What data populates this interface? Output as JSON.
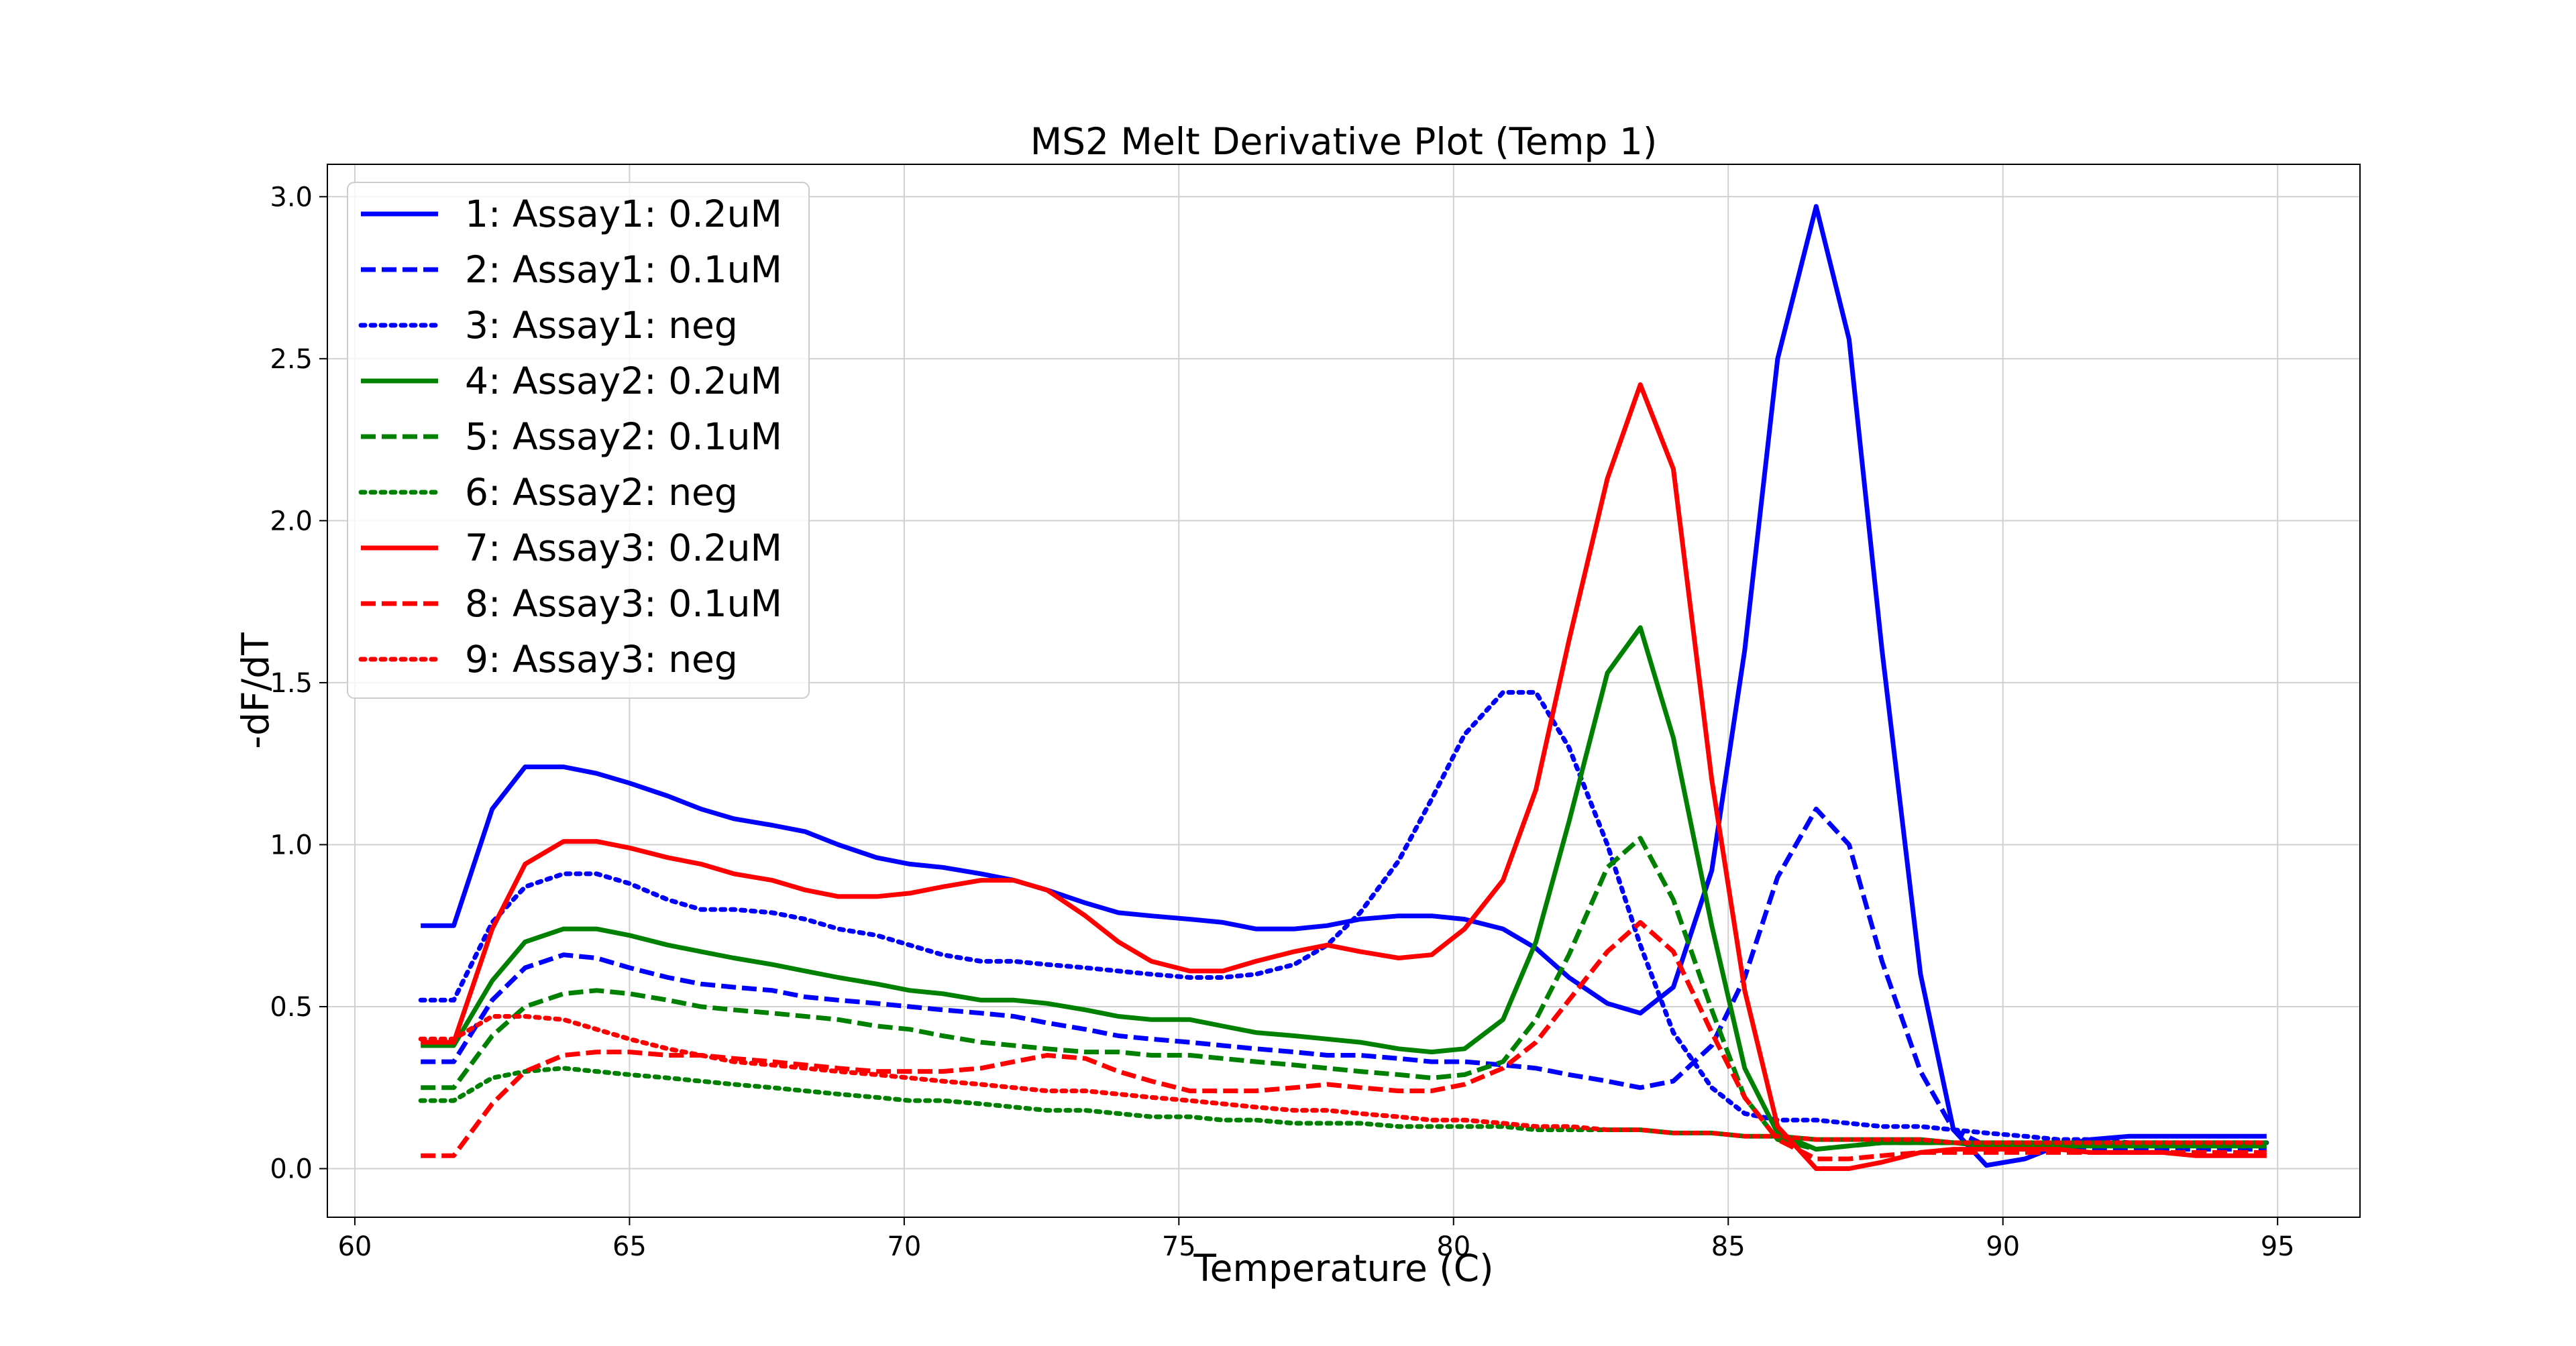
{
  "chart_data": {
    "type": "line",
    "title": "MS2 Melt Derivative Plot (Temp 1)",
    "xlabel": "Temperature (C)",
    "ylabel": "-dF/dT",
    "xlim": [
      59.5,
      96.5
    ],
    "ylim": [
      -0.15,
      3.1
    ],
    "xticks": [
      60,
      65,
      70,
      75,
      80,
      85,
      90,
      95
    ],
    "yticks": [
      0.0,
      0.5,
      1.0,
      1.5,
      2.0,
      2.5,
      3.0
    ],
    "xtick_labels": [
      "60",
      "65",
      "70",
      "75",
      "80",
      "85",
      "90",
      "95"
    ],
    "ytick_labels": [
      "0.0",
      "0.5",
      "1.0",
      "1.5",
      "2.0",
      "2.5",
      "3.0"
    ],
    "grid": true,
    "legend_position": "upper-left",
    "x": [
      61.2,
      61.8,
      62.5,
      63.1,
      63.8,
      64.4,
      65.0,
      65.7,
      66.3,
      66.9,
      67.6,
      68.2,
      68.8,
      69.5,
      70.1,
      70.7,
      71.4,
      72.0,
      72.6,
      73.3,
      73.9,
      74.5,
      75.2,
      75.8,
      76.4,
      77.1,
      77.7,
      78.3,
      79.0,
      79.6,
      80.2,
      80.9,
      81.5,
      82.1,
      82.8,
      83.4,
      84.0,
      84.7,
      85.3,
      85.9,
      86.6,
      87.2,
      87.8,
      88.5,
      89.1,
      89.7,
      90.4,
      91.0,
      91.6,
      92.3,
      92.9,
      93.5,
      94.2,
      94.8
    ],
    "series": [
      {
        "name": "1: Assay1: 0.2uM",
        "color": "#0000ff",
        "dash": "solid",
        "values": [
          0.75,
          0.75,
          1.11,
          1.24,
          1.24,
          1.22,
          1.19,
          1.15,
          1.11,
          1.08,
          1.06,
          1.04,
          1.0,
          0.96,
          0.94,
          0.93,
          0.91,
          0.89,
          0.86,
          0.82,
          0.79,
          0.78,
          0.77,
          0.76,
          0.74,
          0.74,
          0.75,
          0.77,
          0.78,
          0.78,
          0.77,
          0.74,
          0.68,
          0.59,
          0.51,
          0.48,
          0.56,
          0.92,
          1.6,
          2.5,
          2.97,
          2.56,
          1.6,
          0.6,
          0.12,
          0.01,
          0.03,
          0.07,
          0.09,
          0.1,
          0.1,
          0.1,
          0.1,
          0.1
        ]
      },
      {
        "name": "2: Assay1: 0.1uM",
        "color": "#0000ff",
        "dash": "dashed",
        "values": [
          0.33,
          0.33,
          0.52,
          0.62,
          0.66,
          0.65,
          0.62,
          0.59,
          0.57,
          0.56,
          0.55,
          0.53,
          0.52,
          0.51,
          0.5,
          0.49,
          0.48,
          0.47,
          0.45,
          0.43,
          0.41,
          0.4,
          0.39,
          0.38,
          0.37,
          0.36,
          0.35,
          0.35,
          0.34,
          0.33,
          0.33,
          0.32,
          0.31,
          0.29,
          0.27,
          0.25,
          0.27,
          0.38,
          0.59,
          0.9,
          1.11,
          1.0,
          0.64,
          0.3,
          0.12,
          0.07,
          0.06,
          0.06,
          0.06,
          0.06,
          0.06,
          0.06,
          0.06,
          0.06
        ]
      },
      {
        "name": "3: Assay1: neg",
        "color": "#0000ff",
        "dash": "dotted",
        "values": [
          0.52,
          0.52,
          0.76,
          0.87,
          0.91,
          0.91,
          0.88,
          0.83,
          0.8,
          0.8,
          0.79,
          0.77,
          0.74,
          0.72,
          0.69,
          0.66,
          0.64,
          0.64,
          0.63,
          0.62,
          0.61,
          0.6,
          0.59,
          0.59,
          0.6,
          0.63,
          0.69,
          0.79,
          0.95,
          1.14,
          1.34,
          1.47,
          1.47,
          1.3,
          1.0,
          0.69,
          0.42,
          0.25,
          0.17,
          0.15,
          0.15,
          0.14,
          0.13,
          0.13,
          0.12,
          0.11,
          0.1,
          0.09,
          0.09,
          0.08,
          0.08,
          0.08,
          0.08,
          0.08
        ]
      },
      {
        "name": "4: Assay2: 0.2uM",
        "color": "#008000",
        "dash": "solid",
        "values": [
          0.38,
          0.38,
          0.58,
          0.7,
          0.74,
          0.74,
          0.72,
          0.69,
          0.67,
          0.65,
          0.63,
          0.61,
          0.59,
          0.57,
          0.55,
          0.54,
          0.52,
          0.52,
          0.51,
          0.49,
          0.47,
          0.46,
          0.46,
          0.44,
          0.42,
          0.41,
          0.4,
          0.39,
          0.37,
          0.36,
          0.37,
          0.46,
          0.7,
          1.07,
          1.53,
          1.67,
          1.33,
          0.75,
          0.31,
          0.11,
          0.06,
          0.07,
          0.08,
          0.08,
          0.08,
          0.07,
          0.07,
          0.07,
          0.07,
          0.07,
          0.07,
          0.07,
          0.07,
          0.07
        ]
      },
      {
        "name": "5: Assay2: 0.1uM",
        "color": "#008000",
        "dash": "dashed",
        "values": [
          0.25,
          0.25,
          0.41,
          0.5,
          0.54,
          0.55,
          0.54,
          0.52,
          0.5,
          0.49,
          0.48,
          0.47,
          0.46,
          0.44,
          0.43,
          0.41,
          0.39,
          0.38,
          0.37,
          0.36,
          0.36,
          0.35,
          0.35,
          0.34,
          0.33,
          0.32,
          0.31,
          0.3,
          0.29,
          0.28,
          0.29,
          0.33,
          0.46,
          0.66,
          0.93,
          1.02,
          0.83,
          0.49,
          0.22,
          0.09,
          0.06,
          0.07,
          0.08,
          0.08,
          0.08,
          0.07,
          0.07,
          0.07,
          0.07,
          0.07,
          0.07,
          0.07,
          0.07,
          0.07
        ]
      },
      {
        "name": "6: Assay2: neg",
        "color": "#008000",
        "dash": "dotted",
        "values": [
          0.21,
          0.21,
          0.28,
          0.3,
          0.31,
          0.3,
          0.29,
          0.28,
          0.27,
          0.26,
          0.25,
          0.24,
          0.23,
          0.22,
          0.21,
          0.21,
          0.2,
          0.19,
          0.18,
          0.18,
          0.17,
          0.16,
          0.16,
          0.15,
          0.15,
          0.14,
          0.14,
          0.14,
          0.13,
          0.13,
          0.13,
          0.13,
          0.12,
          0.12,
          0.12,
          0.12,
          0.11,
          0.11,
          0.1,
          0.1,
          0.09,
          0.09,
          0.09,
          0.09,
          0.08,
          0.08,
          0.08,
          0.08,
          0.08,
          0.08,
          0.08,
          0.08,
          0.08,
          0.08
        ]
      },
      {
        "name": "7: Assay3: 0.2uM",
        "color": "#ff0000",
        "dash": "solid",
        "values": [
          0.39,
          0.39,
          0.74,
          0.94,
          1.01,
          1.01,
          0.99,
          0.96,
          0.94,
          0.91,
          0.89,
          0.86,
          0.84,
          0.84,
          0.85,
          0.87,
          0.89,
          0.89,
          0.86,
          0.78,
          0.7,
          0.64,
          0.61,
          0.61,
          0.64,
          0.67,
          0.69,
          0.67,
          0.65,
          0.66,
          0.74,
          0.89,
          1.17,
          1.63,
          2.13,
          2.42,
          2.16,
          1.2,
          0.55,
          0.13,
          0.0,
          0.0,
          0.02,
          0.05,
          0.06,
          0.06,
          0.06,
          0.06,
          0.05,
          0.05,
          0.05,
          0.04,
          0.04,
          0.04
        ]
      },
      {
        "name": "8: Assay3: 0.1uM",
        "color": "#ff0000",
        "dash": "dashed",
        "values": [
          0.04,
          0.04,
          0.2,
          0.3,
          0.35,
          0.36,
          0.36,
          0.35,
          0.35,
          0.34,
          0.33,
          0.32,
          0.31,
          0.3,
          0.3,
          0.3,
          0.31,
          0.33,
          0.35,
          0.34,
          0.3,
          0.27,
          0.24,
          0.24,
          0.24,
          0.25,
          0.26,
          0.25,
          0.24,
          0.24,
          0.26,
          0.31,
          0.39,
          0.52,
          0.67,
          0.76,
          0.67,
          0.42,
          0.22,
          0.09,
          0.03,
          0.03,
          0.04,
          0.05,
          0.05,
          0.05,
          0.05,
          0.05,
          0.05,
          0.05,
          0.05,
          0.05,
          0.05,
          0.05
        ]
      },
      {
        "name": "9: Assay3: neg",
        "color": "#ff0000",
        "dash": "dotted",
        "values": [
          0.4,
          0.4,
          0.47,
          0.47,
          0.46,
          0.43,
          0.4,
          0.37,
          0.35,
          0.33,
          0.32,
          0.31,
          0.3,
          0.29,
          0.28,
          0.27,
          0.26,
          0.25,
          0.24,
          0.24,
          0.23,
          0.22,
          0.21,
          0.2,
          0.19,
          0.18,
          0.18,
          0.17,
          0.16,
          0.15,
          0.15,
          0.14,
          0.13,
          0.13,
          0.12,
          0.12,
          0.11,
          0.11,
          0.1,
          0.1,
          0.09,
          0.09,
          0.09,
          0.09,
          0.08,
          0.08,
          0.08,
          0.08,
          0.08,
          0.08,
          0.08,
          0.08,
          0.08,
          0.08
        ]
      }
    ]
  }
}
